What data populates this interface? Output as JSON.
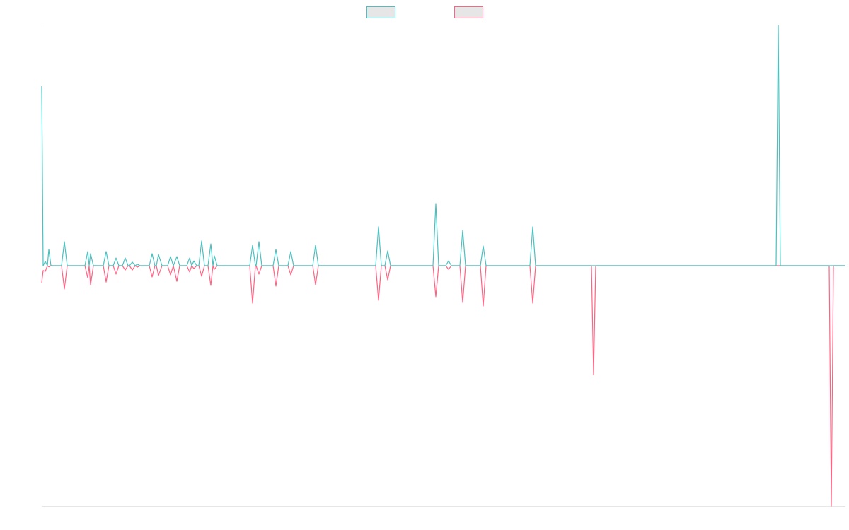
{
  "chart_data": {
    "type": "line",
    "x": [
      0,
      2,
      5,
      8,
      10,
      13,
      28,
      32,
      36,
      61,
      65,
      67,
      69,
      73,
      87,
      91,
      95,
      101,
      105,
      109,
      114,
      118,
      122,
      124,
      128,
      132,
      135,
      139,
      152,
      156,
      160,
      162,
      165,
      170,
      178,
      182,
      186,
      191,
      195,
      205,
      209,
      212,
      215,
      219,
      222,
      226,
      230,
      235,
      239,
      242,
      244,
      248,
      294,
      298,
      302,
      303,
      307,
      311,
      327,
      331,
      335,
      348,
      352,
      356,
      383,
      387,
      391,
      472,
      476,
      480,
      485,
      489,
      493,
      553,
      557,
      561,
      571,
      575,
      579,
      591,
      595,
      599,
      620,
      624,
      628,
      690,
      694,
      698,
      777,
      780,
      783,
      1038,
      1041,
      1044,
      1113,
      1116,
      1119,
      1136
    ],
    "series": [
      {
        "color": "#ff6384",
        "values": [
          -7,
          -2,
          -2.4,
          0,
          -0.5,
          0,
          0,
          -9.7,
          0,
          0,
          -5,
          0,
          -8,
          0,
          0,
          -6.8,
          0,
          0,
          -3.5,
          0,
          0,
          -1.8,
          0,
          0,
          -1.8,
          0,
          -0.6,
          0,
          0,
          -4.7,
          0,
          0,
          -4.1,
          0,
          0,
          -3.8,
          0,
          -6.5,
          0,
          0,
          -2.6,
          0,
          -1.2,
          0,
          0,
          -4.4,
          0,
          0,
          -8.2,
          0,
          -1.5,
          0,
          0,
          -15.6,
          0,
          0,
          -3.5,
          0,
          0,
          -8.5,
          0,
          0,
          -3.8,
          0,
          0,
          -7.9,
          0,
          0,
          -14.4,
          0,
          0,
          -5.9,
          0,
          0,
          -12.9,
          0,
          0,
          -1.5,
          0,
          0,
          -15.3,
          0,
          0,
          -16.8,
          0,
          0,
          -15.6,
          0,
          0,
          -45.3,
          0,
          0,
          0,
          0,
          0,
          -100,
          0,
          0
        ]
      },
      {
        "color": "#4bc0c0",
        "values": [
          74.7,
          0,
          1.8,
          0,
          6.8,
          0,
          0,
          10,
          0,
          0,
          5.9,
          0,
          5,
          0,
          0,
          5.9,
          0,
          0,
          3.2,
          0,
          0,
          3.2,
          0,
          0,
          1.5,
          0,
          0.6,
          0,
          0,
          5,
          0,
          0,
          4.7,
          0,
          0,
          3.8,
          0,
          3.8,
          0,
          0,
          3.2,
          0,
          2,
          0,
          0,
          10.3,
          0,
          0,
          9.1,
          0,
          4.1,
          0,
          0,
          8.5,
          0,
          0,
          10,
          0,
          0,
          6.8,
          0,
          0,
          5.9,
          0,
          0,
          8.5,
          0,
          0,
          16.2,
          0,
          0,
          6.2,
          0,
          0,
          25.9,
          0,
          0,
          2,
          0,
          0,
          14.7,
          0,
          0,
          8.2,
          0,
          0,
          16.2,
          0,
          0,
          0,
          0,
          0,
          100,
          0,
          0,
          0,
          0,
          0
        ]
      }
    ],
    "xlim": [
      0,
      1136
    ],
    "ylim": [
      -100,
      100
    ]
  }
}
